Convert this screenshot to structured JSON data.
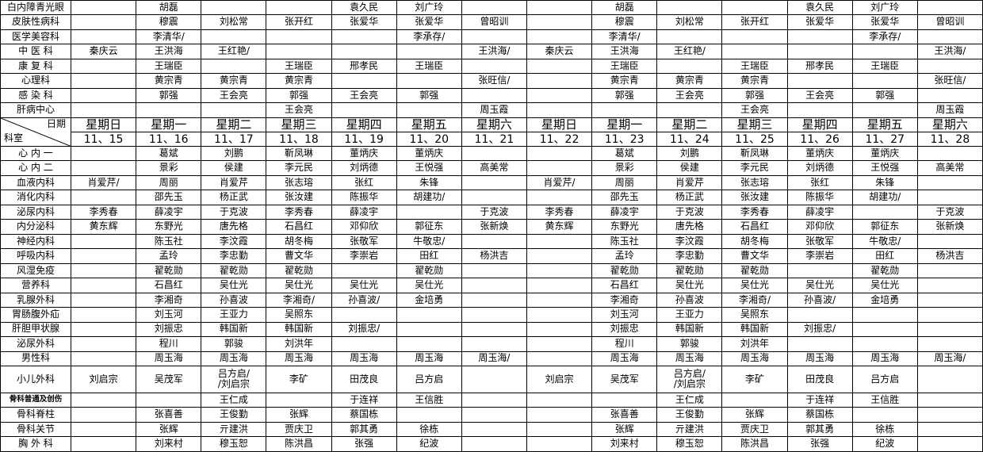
{
  "corner": {
    "date_label": "日期",
    "dept_label": "科室"
  },
  "columns": [
    {
      "weekday": "星期日",
      "date": "11、15"
    },
    {
      "weekday": "星期一",
      "date": "11、16"
    },
    {
      "weekday": "星期二",
      "date": "11、17"
    },
    {
      "weekday": "星期三",
      "date": "11、18"
    },
    {
      "weekday": "星期四",
      "date": "11、19"
    },
    {
      "weekday": "星期五",
      "date": "11、20"
    },
    {
      "weekday": "星期六",
      "date": "11、21"
    },
    {
      "weekday": "星期日",
      "date": "11、22"
    },
    {
      "weekday": "星期一",
      "date": "11、23"
    },
    {
      "weekday": "星期二",
      "date": "11、24"
    },
    {
      "weekday": "星期三",
      "date": "11、25"
    },
    {
      "weekday": "星期四",
      "date": "11、26"
    },
    {
      "weekday": "星期五",
      "date": "11、27"
    },
    {
      "weekday": "星期六",
      "date": "11、28"
    }
  ],
  "rows_above_header": [
    {
      "dept": "白内障青光眼",
      "cells": [
        "",
        "胡磊",
        "",
        "",
        "袁久民",
        "刘广玲",
        "",
        "",
        "胡磊",
        "",
        "",
        "袁久民",
        "刘广玲",
        ""
      ]
    },
    {
      "dept": "皮肤性病科",
      "cells": [
        "",
        "穆震",
        "刘松常",
        "张开红",
        "张爱华",
        "张爱华",
        "曾昭训",
        "",
        "穆震",
        "刘松常",
        "张开红",
        "张爱华",
        "张爱华",
        "曾昭训"
      ]
    },
    {
      "dept": "医学美容科",
      "cells": [
        "",
        "李清华/",
        "",
        "",
        "",
        "李承存/",
        "",
        "",
        "李清华/",
        "",
        "",
        "",
        "李承存/",
        ""
      ]
    },
    {
      "dept": "中 医 科",
      "cells": [
        "秦庆云",
        "王洪海",
        "王红艳/",
        "",
        "",
        "",
        "王洪海/",
        "秦庆云",
        "王洪海",
        "王红艳/",
        "",
        "",
        "",
        "王洪海/"
      ]
    },
    {
      "dept": "康 复 科",
      "cells": [
        "",
        "王瑞臣",
        "",
        "王瑞臣",
        "邢孝民",
        "王瑞臣",
        "",
        "",
        "王瑞臣",
        "",
        "王瑞臣",
        "邢孝民",
        "王瑞臣",
        ""
      ]
    },
    {
      "dept": "心理科",
      "cells": [
        "",
        "黄宗青",
        "黄宗青",
        "黄宗青",
        "",
        "",
        "张旺信/",
        "",
        "黄宗青",
        "黄宗青",
        "黄宗青",
        "",
        "",
        "张旺信/"
      ]
    },
    {
      "dept": "感 染 科",
      "cells": [
        "",
        "郭强",
        "王会亮",
        "郭强",
        "王会亮",
        "郭强",
        "",
        "",
        "郭强",
        "王会亮",
        "郭强",
        "王会亮",
        "郭强",
        ""
      ]
    },
    {
      "dept": "肝病中心",
      "cells": [
        "",
        "",
        "",
        "王会亮",
        "",
        "",
        "周玉霞",
        "",
        "",
        "",
        "王会亮",
        "",
        "",
        "周玉霞"
      ]
    }
  ],
  "rows_below_header": [
    {
      "dept": "心 内 一",
      "cells": [
        "",
        "葛斌",
        "刘鹏",
        "靳凤琳",
        "董炳庆",
        "董炳庆",
        "",
        "",
        "葛斌",
        "刘鹏",
        "靳凤琳",
        "董炳庆",
        "董炳庆",
        ""
      ]
    },
    {
      "dept": "心 内 二",
      "cells": [
        "",
        "景彩",
        "侯建",
        "李元民",
        "刘炳德",
        "王悦强",
        "高美常",
        "",
        "景彩",
        "侯建",
        "李元民",
        "刘炳德",
        "王悦强",
        "高美常"
      ]
    },
    {
      "dept": "血液内科",
      "cells": [
        "肖爱芹/",
        "周丽",
        "肖爱芹",
        "张志瑢",
        "张红",
        "朱锋",
        "",
        "肖爱芹/",
        "周丽",
        "肖爱芹",
        "张志瑢",
        "张红",
        "朱锋",
        ""
      ]
    },
    {
      "dept": "消化内科",
      "cells": [
        "",
        "邵先玉",
        "杨正武",
        "张汝建",
        "陈振华",
        "胡建功/",
        "",
        "",
        "邵先玉",
        "杨正武",
        "张汝建",
        "陈振华",
        "胡建功/",
        ""
      ]
    },
    {
      "dept": "泌尿内科",
      "cells": [
        "李秀春",
        "薛凌宇",
        "于克波",
        "李秀春",
        "薛凌宇",
        "",
        "于克波",
        "李秀春",
        "薛凌宇",
        "于克波",
        "李秀春",
        "薛凌宇",
        "",
        "于克波"
      ]
    },
    {
      "dept": "内分泌科",
      "cells": [
        "黄东辉",
        "东野光",
        "唐先格",
        "石昌红",
        "邓仰欣",
        "郭征东",
        "张新焕",
        "黄东辉",
        "东野光",
        "唐先格",
        "石昌红",
        "邓仰欣",
        "郭征东",
        "张新焕"
      ]
    },
    {
      "dept": "神经内科",
      "cells": [
        "",
        "陈玉社",
        "李汶霞",
        "胡冬梅",
        "张敬军",
        "牛敬忠/",
        "",
        "",
        "陈玉社",
        "李汶霞",
        "胡冬梅",
        "张敬军",
        "牛敬忠/",
        ""
      ]
    },
    {
      "dept": "呼吸内科",
      "cells": [
        "",
        "孟玲",
        "李忠勤",
        "曹文华",
        "李崇岩",
        "田红",
        "杨洪吉",
        "",
        "孟玲",
        "李忠勤",
        "曹文华",
        "李崇岩",
        "田红",
        "杨洪吉"
      ]
    },
    {
      "dept": "风湿免疫",
      "cells": [
        "",
        "翟乾勋",
        "翟乾勋",
        "翟乾勋",
        "",
        "翟乾勋",
        "",
        "",
        "翟乾勋",
        "翟乾勋",
        "翟乾勋",
        "",
        "翟乾勋",
        ""
      ]
    },
    {
      "dept": "营养科",
      "cells": [
        "",
        "石昌红",
        "吴仕光",
        "吴仕光",
        "吴仕光",
        "吴仕光",
        "",
        "",
        "石昌红",
        "吴仕光",
        "吴仕光",
        "吴仕光",
        "吴仕光",
        ""
      ]
    },
    {
      "dept": "乳腺外科",
      "cells": [
        "",
        "李湘奇",
        "孙喜波",
        "李湘奇/",
        "孙喜波/",
        "金培勇",
        "",
        "",
        "李湘奇",
        "孙喜波",
        "李湘奇/",
        "孙喜波/",
        "金培勇",
        ""
      ]
    },
    {
      "dept": "胃肠腹外疝",
      "cells": [
        "",
        "刘玉河",
        "王亚力",
        "吴照东",
        "",
        "",
        "",
        "",
        "刘玉河",
        "王亚力",
        "吴照东",
        "",
        "",
        ""
      ]
    },
    {
      "dept": "肝胆甲状腺",
      "cells": [
        "",
        "刘振忠",
        "韩国新",
        "韩国新",
        "刘振忠/",
        "",
        "",
        "",
        "刘振忠",
        "韩国新",
        "韩国新",
        "刘振忠/",
        "",
        ""
      ]
    },
    {
      "dept": "泌尿外科",
      "cells": [
        "",
        "程川",
        "郭骏",
        "刘洪年",
        "",
        "",
        "",
        "",
        "程川",
        "郭骏",
        "刘洪年",
        "",
        "",
        ""
      ]
    },
    {
      "dept": "男性科",
      "cells": [
        "",
        "周玉海",
        "周玉海",
        "周玉海",
        "周玉海",
        "周玉海",
        "周玉海/",
        "",
        "周玉海",
        "周玉海",
        "周玉海",
        "周玉海",
        "周玉海",
        "周玉海/"
      ]
    },
    {
      "dept": "小儿外科",
      "cells": [
        "刘启宗",
        "吴茂军",
        "吕方启/\n/刘启宗",
        "李矿",
        "田茂良",
        "吕方启",
        "",
        "刘启宗",
        "吴茂军",
        "吕方启/\n/刘启宗",
        "李矿",
        "田茂良",
        "吕方启",
        ""
      ]
    },
    {
      "dept": "骨科普通及创伤",
      "cells": [
        "",
        "",
        "王仁成",
        "",
        "于连祥",
        "王信胜",
        "",
        "",
        "",
        "王仁成",
        "",
        "于连祥",
        "王信胜",
        ""
      ]
    },
    {
      "dept": "骨科脊柱",
      "cells": [
        "",
        "张喜善",
        "王俊勤",
        "张辉",
        "蔡国栋",
        "",
        "",
        "",
        "张喜善",
        "王俊勤",
        "张辉",
        "蔡国栋",
        "",
        ""
      ]
    },
    {
      "dept": "骨科关节",
      "cells": [
        "",
        "张辉",
        "亓建洪",
        "贾庆卫",
        "郭其勇",
        "徐栋",
        "",
        "",
        "张辉",
        "亓建洪",
        "贾庆卫",
        "郭其勇",
        "徐栋",
        ""
      ]
    },
    {
      "dept": "胸 外 科",
      "cells": [
        "",
        "刘来村",
        "穆玉恕",
        "陈洪昌",
        "张强",
        "纪波",
        "",
        "",
        "刘来村",
        "穆玉恕",
        "陈洪昌",
        "张强",
        "纪波",
        ""
      ]
    }
  ]
}
